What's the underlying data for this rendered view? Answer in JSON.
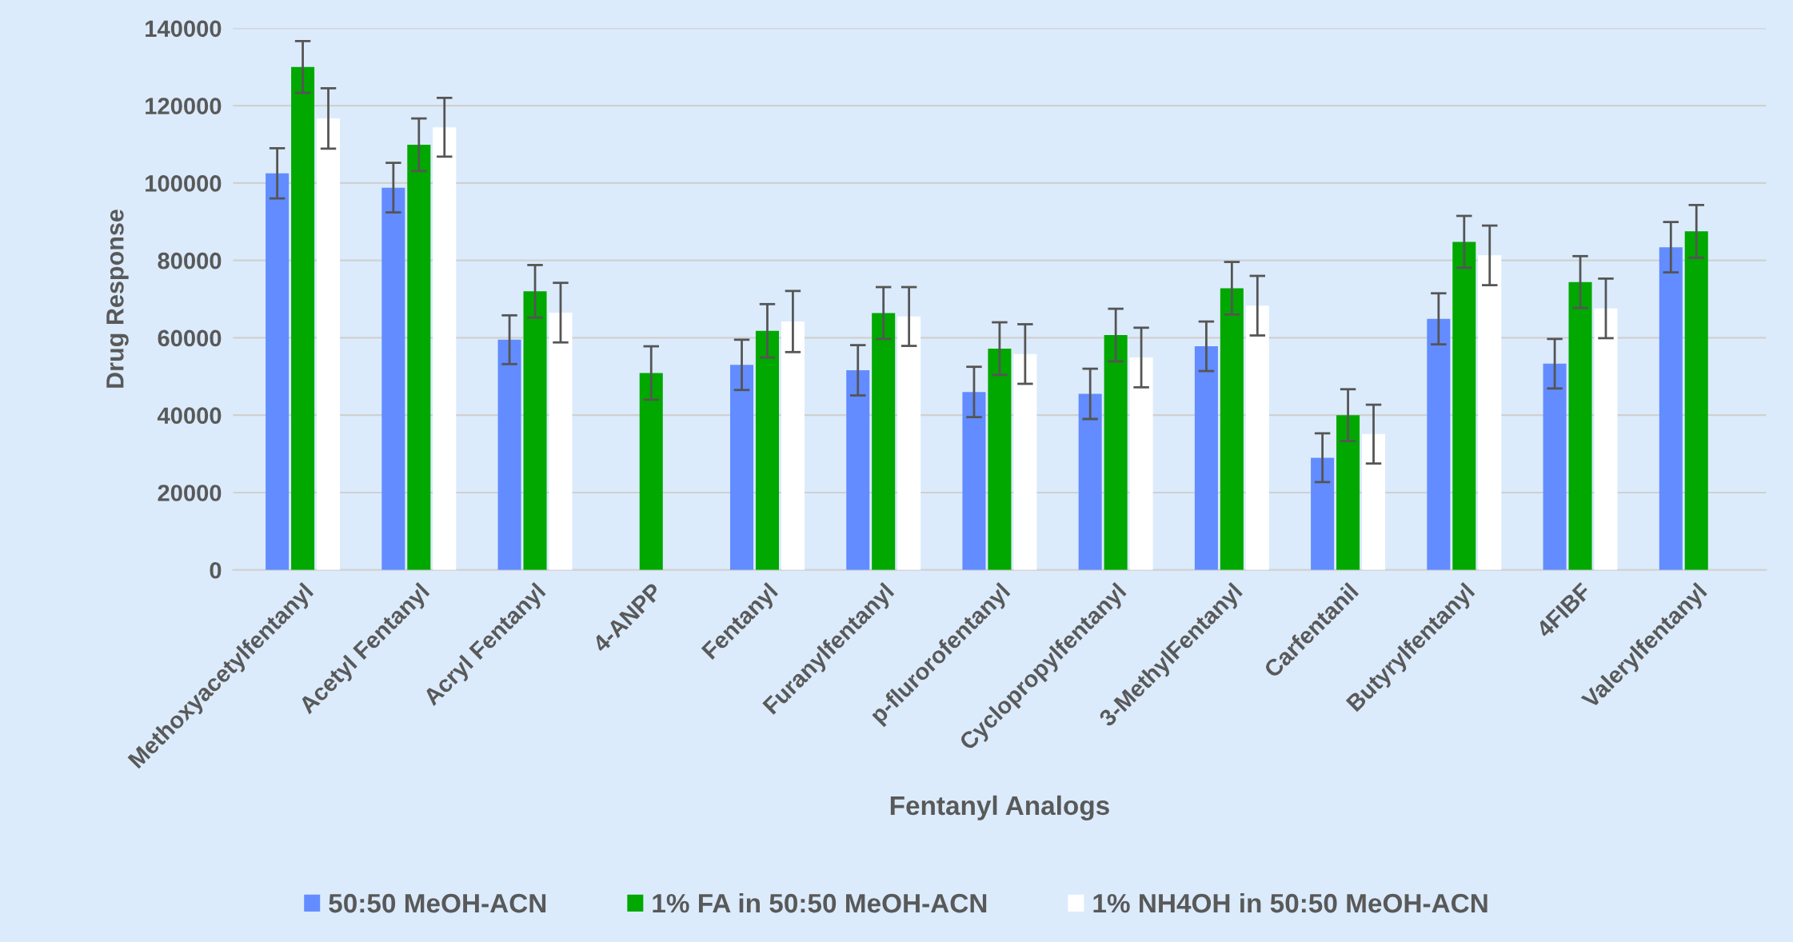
{
  "chart_data": {
    "type": "bar",
    "xlabel": "Fentanyl Analogs",
    "ylabel": "Drug Response",
    "categories": [
      "Methoxyacetylfentanyl",
      "Acetyl Fentanyl",
      "Acryl Fentanyl",
      "4-ANPP",
      "Fentanyl",
      "Furanylfentanyl",
      "p-flurorofentanyl",
      "Cyclopropylfentanyl",
      "3-MethylFentanyl",
      "Carfentanil",
      "Butyrylfentanyl",
      "4FIBF",
      "Valerylfentanyl"
    ],
    "series": [
      {
        "name": "50:50 MeOH-ACN",
        "color": "#628cff",
        "values": [
          102500,
          98800,
          59500,
          null,
          53000,
          51600,
          46000,
          45500,
          57800,
          29000,
          64900,
          53300,
          83400
        ],
        "errors": [
          6500,
          6400,
          6300,
          null,
          6500,
          6500,
          6500,
          6500,
          6400,
          6300,
          6600,
          6400,
          6500
        ]
      },
      {
        "name": "1% FA in 50:50 MeOH-ACN",
        "color": "#00a800",
        "values": [
          130000,
          109900,
          72000,
          50900,
          61800,
          66400,
          57200,
          60700,
          72800,
          40000,
          84800,
          74400,
          87500
        ],
        "errors": [
          6700,
          6800,
          6800,
          6900,
          6900,
          6700,
          6800,
          6800,
          6800,
          6700,
          6700,
          6700,
          6800
        ]
      },
      {
        "name": "1% NH4OH in 50:50 MeOH-ACN",
        "color": "#ffffff",
        "values": [
          116700,
          114400,
          66500,
          null,
          64200,
          65500,
          55800,
          54900,
          68300,
          35100,
          81300,
          67600,
          null
        ],
        "errors": [
          7800,
          7600,
          7700,
          null,
          7900,
          7600,
          7700,
          7700,
          7700,
          7600,
          7700,
          7700,
          null
        ]
      }
    ],
    "ylim": [
      0,
      140000
    ],
    "yticks": [
      0,
      20000,
      40000,
      60000,
      80000,
      100000,
      120000,
      140000
    ],
    "grid": "y",
    "legend": "bottom"
  }
}
